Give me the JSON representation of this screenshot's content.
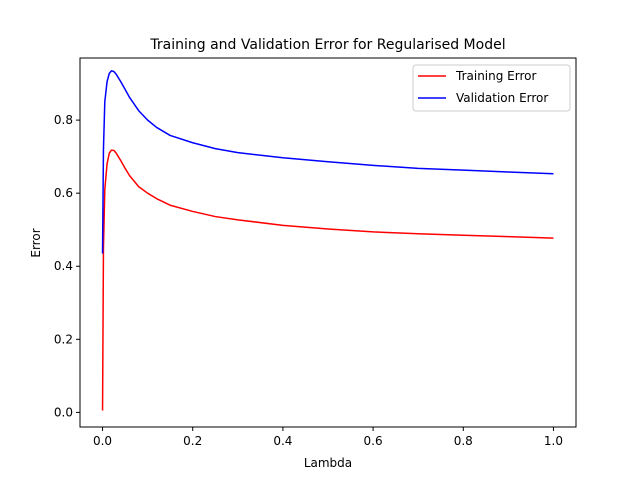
{
  "chart_data": {
    "type": "line",
    "title": "Training and Validation Error for Regularised Model",
    "xlabel": "Lambda",
    "ylabel": "Error",
    "xlim": [
      -0.05,
      1.05
    ],
    "ylim": [
      -0.04,
      0.97
    ],
    "xticks": [
      0.0,
      0.2,
      0.4,
      0.6,
      0.8,
      1.0
    ],
    "xtick_labels": [
      "0.0",
      "0.2",
      "0.4",
      "0.6",
      "0.8",
      "1.0"
    ],
    "yticks": [
      0.0,
      0.2,
      0.4,
      0.6,
      0.8
    ],
    "ytick_labels": [
      "0.0",
      "0.2",
      "0.4",
      "0.6",
      "0.8"
    ],
    "grid": false,
    "legend_position": "top-right",
    "series": [
      {
        "name": "Training Error",
        "color": "#ff0000",
        "x": [
          0.0,
          0.002,
          0.005,
          0.01,
          0.015,
          0.02,
          0.025,
          0.03,
          0.04,
          0.05,
          0.06,
          0.08,
          0.1,
          0.12,
          0.15,
          0.2,
          0.25,
          0.3,
          0.4,
          0.5,
          0.6,
          0.7,
          0.8,
          0.9,
          1.0
        ],
        "y": [
          0.005,
          0.45,
          0.61,
          0.68,
          0.71,
          0.718,
          0.717,
          0.71,
          0.69,
          0.668,
          0.648,
          0.618,
          0.6,
          0.585,
          0.567,
          0.55,
          0.536,
          0.527,
          0.512,
          0.502,
          0.494,
          0.489,
          0.485,
          0.481,
          0.477
        ]
      },
      {
        "name": "Validation Error",
        "color": "#0000ff",
        "x": [
          0.0,
          0.002,
          0.005,
          0.01,
          0.015,
          0.02,
          0.025,
          0.03,
          0.04,
          0.05,
          0.06,
          0.08,
          0.1,
          0.12,
          0.15,
          0.2,
          0.25,
          0.3,
          0.4,
          0.5,
          0.6,
          0.7,
          0.8,
          0.9,
          1.0
        ],
        "y": [
          0.435,
          0.72,
          0.85,
          0.905,
          0.928,
          0.935,
          0.933,
          0.926,
          0.906,
          0.884,
          0.862,
          0.826,
          0.8,
          0.78,
          0.758,
          0.738,
          0.722,
          0.711,
          0.697,
          0.686,
          0.676,
          0.668,
          0.663,
          0.658,
          0.653
        ]
      }
    ]
  }
}
